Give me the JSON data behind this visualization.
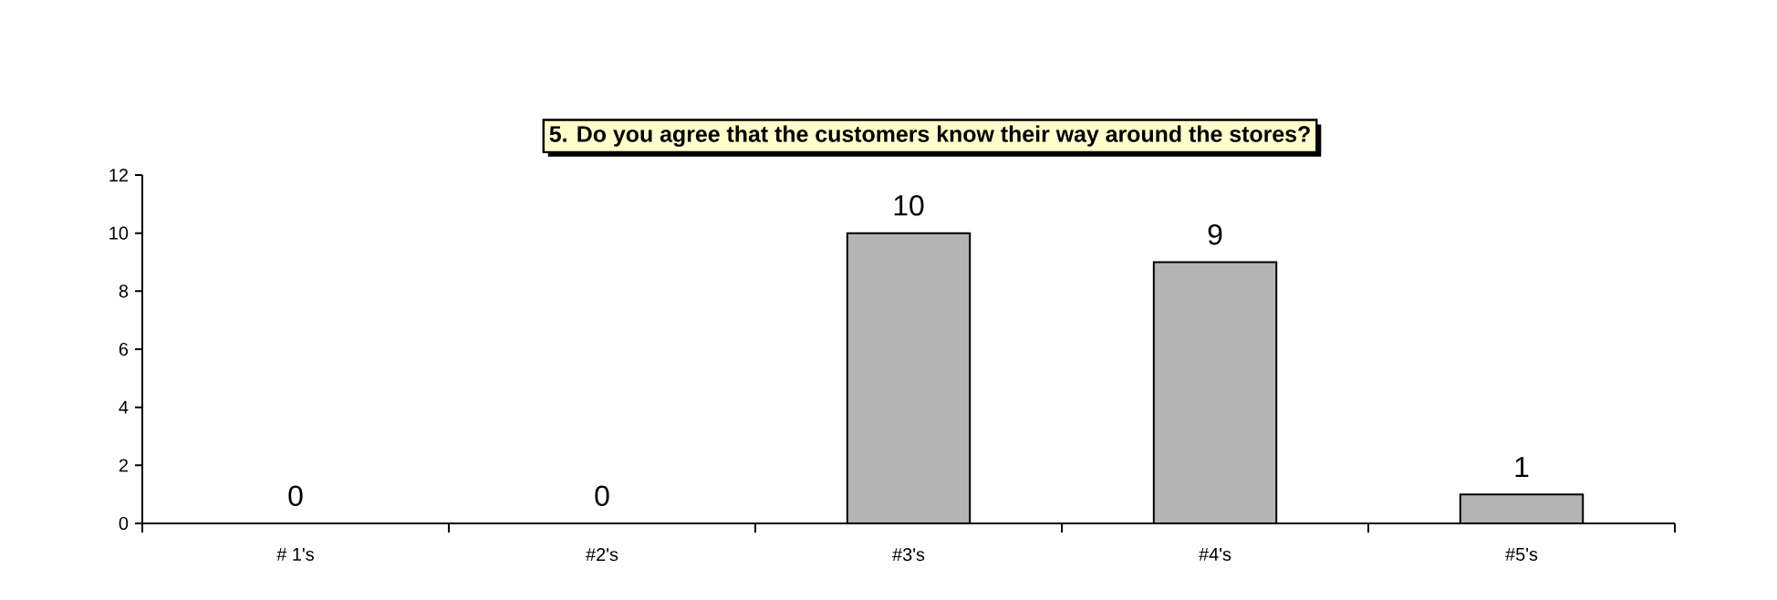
{
  "chart_data": {
    "type": "bar",
    "title": "5.  Do you agree that the customers know their way around the stores?",
    "categories": [
      "# 1's",
      "#2's",
      "#3's",
      "#4's",
      "#5's"
    ],
    "values": [
      0,
      0,
      10,
      9,
      1
    ],
    "color": "#b4b4b4",
    "ylim": [
      0,
      12
    ],
    "yticks": [
      0,
      2,
      4,
      6,
      8,
      10,
      12
    ],
    "data_labels": true
  }
}
